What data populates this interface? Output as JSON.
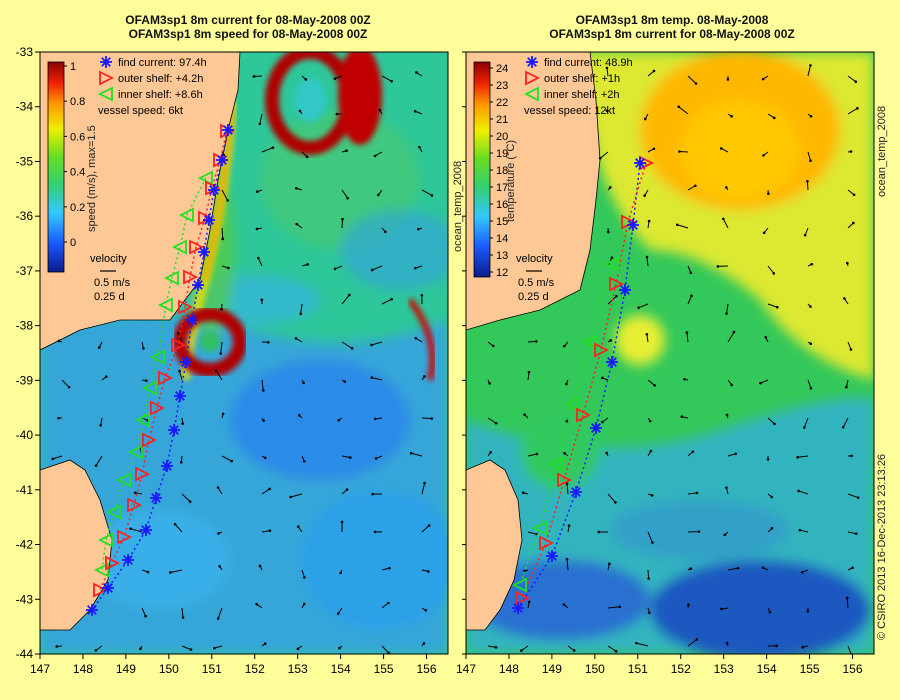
{
  "left_panel": {
    "title_line1": "OFAM3sp1 8m current for 08-May-2008 00Z",
    "title_line2": "OFAM3sp1 8m speed for 08-May-2008 00Z",
    "legend": [
      {
        "label": "find current: 97.4h",
        "marker": "star",
        "color": "#1a1aff"
      },
      {
        "label": "outer shelf: +4.2h",
        "marker": "triangle-right",
        "color": "#ff2020"
      },
      {
        "label": "inner shelf: +8.6h",
        "marker": "triangle-left",
        "color": "#20e020"
      },
      {
        "label": "vessel speed: 6kt",
        "marker": "none",
        "color": "#000000"
      }
    ],
    "colorbar": {
      "label": "speed (m/s), max=1.5",
      "ticks": [
        "1",
        "0.8",
        "0.6",
        "0.4",
        "0.2",
        "0"
      ]
    },
    "velocity_key": {
      "title": "velocity",
      "line1": "0.5 m/s",
      "line2": "0.25 d"
    }
  },
  "right_panel": {
    "title_line1": "OFAM3sp1 8m temp. 08-May-2008",
    "title_line2": "OFAM3sp1 8m current for 08-May-2008 00Z",
    "legend": [
      {
        "label": "find current: 48.9h",
        "marker": "star",
        "color": "#1a1aff"
      },
      {
        "label": "outer shelf: +1h",
        "marker": "triangle-right",
        "color": "#ff2020"
      },
      {
        "label": "inner shelf: +2h",
        "marker": "triangle-left",
        "color": "#20e020"
      },
      {
        "label": "vessel speed: 12kt",
        "marker": "none",
        "color": "#000000"
      }
    ],
    "colorbar": {
      "label": "temperature (°C)",
      "ticks": [
        "24",
        "23",
        "22",
        "21",
        "20",
        "19",
        "18",
        "17",
        "16",
        "15",
        "14",
        "13",
        "12"
      ]
    },
    "velocity_key": {
      "title": "velocity",
      "line1": "0.5 m/s",
      "line2": "0.25 d"
    },
    "colorbar_side_label": "ocean_temp_2008"
  },
  "right_side_label": "ocean_temp_2008",
  "credit": "© CSIRO 2013   16-Dec-2013 23:13:26",
  "axes": {
    "x_ticks": [
      "147",
      "148",
      "149",
      "150",
      "151",
      "152",
      "153",
      "154",
      "155",
      "156"
    ],
    "y_ticks": [
      "-33",
      "-34",
      "-35",
      "-36",
      "-37",
      "-38",
      "-39",
      "-40",
      "-41",
      "-42",
      "-43",
      "-44"
    ],
    "lon_range": [
      147,
      156.5
    ],
    "lat_range": [
      -44,
      -33
    ]
  },
  "colors": {
    "land": "#fdc896",
    "background": "#fdfe9a"
  }
}
